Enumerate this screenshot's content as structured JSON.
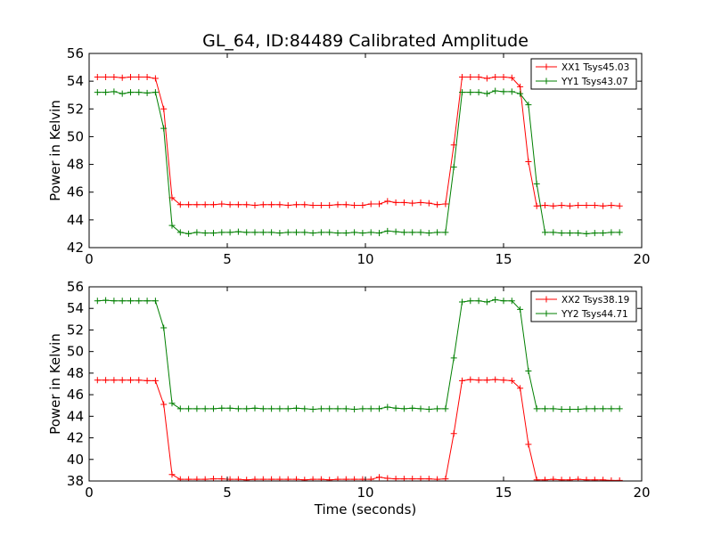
{
  "chart_data": [
    {
      "type": "line",
      "title": "GL_64, ID:84489 Calibrated Amplitude",
      "xlabel": "",
      "ylabel": "Power in Kelvin",
      "xlim": [
        0,
        20
      ],
      "ylim": [
        42,
        56
      ],
      "xticks": [
        0,
        5,
        10,
        15,
        20
      ],
      "yticks": [
        42,
        44,
        46,
        48,
        50,
        52,
        54,
        56
      ],
      "grid": false,
      "legend": "top-right",
      "x": [
        0.3,
        0.6,
        0.9,
        1.2,
        1.5,
        1.8,
        2.1,
        2.4,
        2.7,
        3.0,
        3.3,
        3.6,
        3.9,
        4.2,
        4.5,
        4.8,
        5.1,
        5.4,
        5.7,
        6.0,
        6.3,
        6.6,
        6.9,
        7.2,
        7.5,
        7.8,
        8.1,
        8.4,
        8.7,
        9.0,
        9.3,
        9.6,
        9.9,
        10.2,
        10.5,
        10.8,
        11.1,
        11.4,
        11.7,
        12.0,
        12.3,
        12.6,
        12.9,
        13.2,
        13.5,
        13.8,
        14.1,
        14.4,
        14.7,
        15.0,
        15.3,
        15.6,
        15.9,
        16.2,
        16.5,
        16.8,
        17.1,
        17.4,
        17.7,
        18.0,
        18.3,
        18.6,
        18.9,
        19.2
      ],
      "series": [
        {
          "name": "XX1 Tsys45.03",
          "color": "#ff0000",
          "values": [
            54.3,
            54.3,
            54.3,
            54.25,
            54.3,
            54.3,
            54.3,
            54.2,
            52.0,
            45.6,
            45.1,
            45.1,
            45.1,
            45.1,
            45.1,
            45.15,
            45.1,
            45.1,
            45.1,
            45.05,
            45.1,
            45.1,
            45.1,
            45.05,
            45.1,
            45.1,
            45.05,
            45.05,
            45.05,
            45.1,
            45.1,
            45.05,
            45.05,
            45.15,
            45.15,
            45.35,
            45.25,
            45.25,
            45.2,
            45.25,
            45.2,
            45.1,
            45.15,
            49.4,
            54.3,
            54.3,
            54.3,
            54.2,
            54.3,
            54.3,
            54.25,
            53.6,
            48.2,
            45.0,
            45.05,
            45.0,
            45.05,
            45.0,
            45.05,
            45.05,
            45.05,
            45.0,
            45.05,
            45.0
          ]
        },
        {
          "name": "YY1 Tsys43.07",
          "color": "#007f00",
          "values": [
            53.2,
            53.2,
            53.25,
            53.1,
            53.2,
            53.2,
            53.15,
            53.2,
            50.6,
            43.6,
            43.1,
            43.0,
            43.1,
            43.05,
            43.05,
            43.1,
            43.1,
            43.15,
            43.1,
            43.1,
            43.1,
            43.1,
            43.05,
            43.1,
            43.1,
            43.1,
            43.05,
            43.1,
            43.1,
            43.05,
            43.05,
            43.1,
            43.05,
            43.1,
            43.05,
            43.2,
            43.15,
            43.1,
            43.1,
            43.1,
            43.05,
            43.1,
            43.1,
            47.8,
            53.2,
            53.2,
            53.2,
            53.1,
            53.3,
            53.25,
            53.25,
            53.1,
            52.3,
            46.6,
            43.1,
            43.1,
            43.05,
            43.05,
            43.05,
            43.0,
            43.05,
            43.05,
            43.1,
            43.1
          ]
        }
      ]
    },
    {
      "type": "line",
      "title": "",
      "xlabel": "Time (seconds)",
      "ylabel": "Power in Kelvin",
      "xlim": [
        0,
        20
      ],
      "ylim": [
        38,
        56
      ],
      "xticks": [
        0,
        5,
        10,
        15,
        20
      ],
      "yticks": [
        38,
        40,
        42,
        44,
        46,
        48,
        50,
        52,
        54,
        56
      ],
      "grid": false,
      "legend": "top-right",
      "x": [
        0.3,
        0.6,
        0.9,
        1.2,
        1.5,
        1.8,
        2.1,
        2.4,
        2.7,
        3.0,
        3.3,
        3.6,
        3.9,
        4.2,
        4.5,
        4.8,
        5.1,
        5.4,
        5.7,
        6.0,
        6.3,
        6.6,
        6.9,
        7.2,
        7.5,
        7.8,
        8.1,
        8.4,
        8.7,
        9.0,
        9.3,
        9.6,
        9.9,
        10.2,
        10.5,
        10.8,
        11.1,
        11.4,
        11.7,
        12.0,
        12.3,
        12.6,
        12.9,
        13.2,
        13.5,
        13.8,
        14.1,
        14.4,
        14.7,
        15.0,
        15.3,
        15.6,
        15.9,
        16.2,
        16.5,
        16.8,
        17.1,
        17.4,
        17.7,
        18.0,
        18.3,
        18.6,
        18.9,
        19.2
      ],
      "series": [
        {
          "name": "XX2 Tsys38.19",
          "color": "#ff0000",
          "values": [
            47.35,
            47.35,
            47.35,
            47.35,
            47.35,
            47.35,
            47.3,
            47.3,
            45.1,
            38.6,
            38.15,
            38.15,
            38.15,
            38.15,
            38.2,
            38.2,
            38.15,
            38.15,
            38.1,
            38.15,
            38.15,
            38.15,
            38.15,
            38.15,
            38.15,
            38.1,
            38.15,
            38.15,
            38.1,
            38.15,
            38.15,
            38.15,
            38.15,
            38.15,
            38.35,
            38.25,
            38.2,
            38.2,
            38.2,
            38.2,
            38.2,
            38.15,
            38.2,
            42.4,
            47.3,
            47.4,
            47.35,
            47.35,
            47.4,
            47.35,
            47.3,
            46.6,
            41.4,
            38.1,
            38.1,
            38.15,
            38.1,
            38.1,
            38.15,
            38.1,
            38.1,
            38.1,
            38.05,
            38.05
          ]
        },
        {
          "name": "YY2 Tsys44.71",
          "color": "#007f00",
          "values": [
            54.7,
            54.75,
            54.7,
            54.7,
            54.7,
            54.7,
            54.7,
            54.7,
            52.2,
            45.2,
            44.7,
            44.7,
            44.7,
            44.7,
            44.7,
            44.75,
            44.75,
            44.7,
            44.7,
            44.75,
            44.7,
            44.7,
            44.7,
            44.7,
            44.75,
            44.7,
            44.65,
            44.7,
            44.7,
            44.7,
            44.7,
            44.65,
            44.7,
            44.7,
            44.7,
            44.85,
            44.75,
            44.7,
            44.75,
            44.7,
            44.65,
            44.7,
            44.7,
            49.4,
            54.6,
            54.7,
            54.7,
            54.6,
            54.8,
            54.7,
            54.7,
            53.9,
            48.2,
            44.7,
            44.7,
            44.7,
            44.65,
            44.65,
            44.65,
            44.7,
            44.7,
            44.7,
            44.7,
            44.7
          ]
        }
      ]
    }
  ]
}
